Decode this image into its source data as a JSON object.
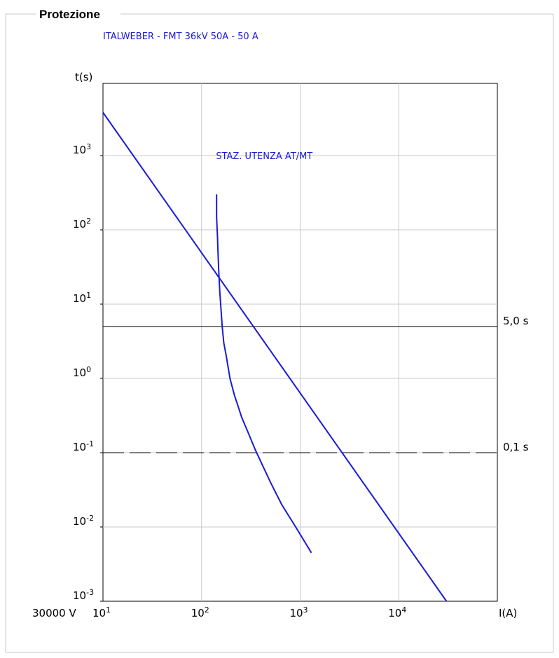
{
  "panel": {
    "title": "Protezione"
  },
  "chart_data": {
    "type": "line",
    "title": "ITALWEBER - FMT 36kV 50A - 50 A",
    "xlabel": "I(A)",
    "ylabel": "t(s)",
    "voltage_label": "30000 V",
    "x_scale": "log",
    "y_scale": "log",
    "xlim": [
      10,
      100000
    ],
    "ylim": [
      0.001,
      6000
    ],
    "grid": true,
    "x_ticks": [
      {
        "value": 10,
        "base": "10",
        "exp": "1"
      },
      {
        "value": 100,
        "base": "10",
        "exp": "2"
      },
      {
        "value": 1000,
        "base": "10",
        "exp": "3"
      },
      {
        "value": 10000,
        "base": "10",
        "exp": "4"
      }
    ],
    "y_ticks": [
      {
        "value": 1000,
        "base": "10",
        "exp": "3"
      },
      {
        "value": 100,
        "base": "10",
        "exp": "2"
      },
      {
        "value": 10,
        "base": "10",
        "exp": "1"
      },
      {
        "value": 1,
        "base": "10",
        "exp": "0"
      },
      {
        "value": 0.1,
        "base": "10",
        "exp": "-1"
      },
      {
        "value": 0.01,
        "base": "10",
        "exp": "-2"
      },
      {
        "value": 0.001,
        "base": "10",
        "exp": "-3"
      }
    ],
    "reference_lines": [
      {
        "y": 5.0,
        "label": "5,0 s",
        "style": "solid",
        "color": "#000000"
      },
      {
        "y": 0.1,
        "label": "0,1 s",
        "style": "dashed",
        "color": "#000000"
      }
    ],
    "annotations": [
      {
        "text": "STAZ. UTENZA AT/MT",
        "x": 140,
        "y": 900,
        "color": "#1a1ad6"
      }
    ],
    "series": [
      {
        "color": "#1a1ad6",
        "points": [
          [
            10,
            3800
          ],
          [
            30500,
            0.001
          ]
        ]
      },
      {
        "color": "#1a1ad6",
        "points": [
          [
            142,
            300
          ],
          [
            142,
            150
          ],
          [
            144,
            100
          ],
          [
            145,
            80
          ],
          [
            145.5,
            70
          ],
          [
            146,
            60
          ],
          [
            149,
            30
          ],
          [
            153,
            15
          ],
          [
            158,
            8
          ],
          [
            162,
            5
          ],
          [
            168,
            3
          ],
          [
            178,
            2
          ],
          [
            194,
            1
          ],
          [
            215,
            0.6
          ],
          [
            255,
            0.3
          ],
          [
            300,
            0.18
          ],
          [
            350,
            0.11
          ],
          [
            400,
            0.075
          ],
          [
            500,
            0.04
          ],
          [
            650,
            0.02
          ],
          [
            900,
            0.01
          ],
          [
            1300,
            0.0045
          ]
        ]
      }
    ]
  }
}
